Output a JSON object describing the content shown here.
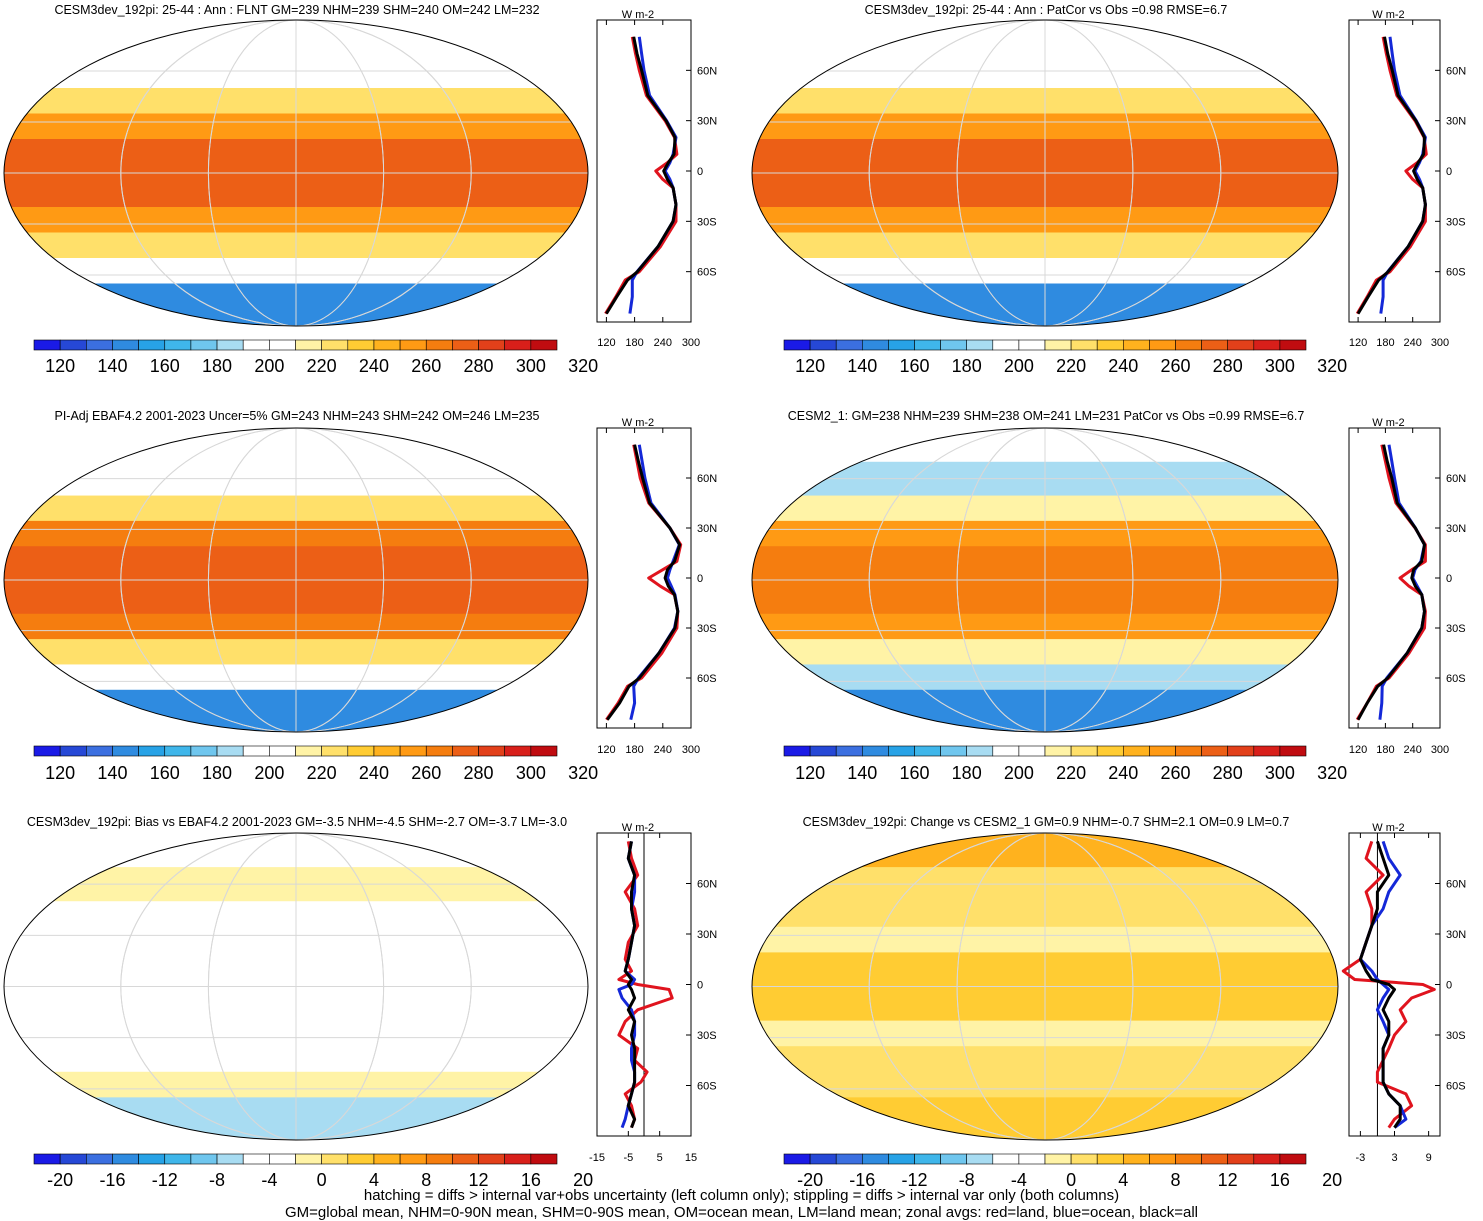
{
  "footer": {
    "line1": "hatching = diffs > internal var+obs uncertainty (left column only); stippling = diffs > internal var only (both columns)",
    "line2": "GM=global mean, NHM=0-90N mean, SHM=0-90S mean, OM=ocean mean, LM=land mean; zonal avgs: red=land, blue=ocean, black=all"
  },
  "colors": {
    "land_line": "#e0141e",
    "ocean_line": "#1428d8",
    "all_line": "#000000",
    "missing_land": "#c8c8c8"
  },
  "colormap": [
    "#1a1ae6",
    "#2648d6",
    "#3b6fe0",
    "#2f8be0",
    "#27a2e6",
    "#3fb6ea",
    "#6fc6ee",
    "#a8dcf2",
    "#ffffff",
    "#ffffff",
    "#fff3a6",
    "#ffe06a",
    "#ffcc33",
    "#ffb21e",
    "#ff9a14",
    "#f57d0f",
    "#ec5f16",
    "#e2401a",
    "#d81f1a",
    "#c00c10"
  ],
  "chart_data": [
    {
      "type": "heatmap",
      "title": "CESM3dev_192pi: 25-44 : Ann : FLNT GM=239 NHM=239 SHM=240 OM=242 LM=232",
      "colorbar_ticks": [
        "120",
        "140",
        "160",
        "180",
        "200",
        "220",
        "240",
        "260",
        "280",
        "300",
        "320"
      ],
      "zonal_axis": {
        "xlim": [
          100,
          300
        ],
        "xticks": [
          "120",
          "180",
          "240",
          "300"
        ],
        "unit": "W m-2",
        "lat_ticks": [
          "60N",
          "30N",
          "0",
          "30S",
          "60S"
        ]
      },
      "zonal_series": [
        {
          "name": "land",
          "lat": [
            80,
            70,
            60,
            45,
            30,
            20,
            10,
            5,
            0,
            -5,
            -10,
            -20,
            -30,
            -45,
            -60,
            -65,
            -75,
            -85
          ],
          "values": [
            175,
            182,
            190,
            205,
            245,
            265,
            270,
            250,
            225,
            240,
            262,
            268,
            268,
            235,
            190,
            160,
            140,
            118
          ]
        },
        {
          "name": "ocean",
          "lat": [
            80,
            70,
            60,
            45,
            30,
            20,
            10,
            5,
            0,
            -5,
            -10,
            -20,
            -30,
            -45,
            -60,
            -65,
            -75,
            -85
          ],
          "values": [
            190,
            195,
            200,
            212,
            248,
            268,
            262,
            255,
            245,
            255,
            262,
            268,
            262,
            230,
            185,
            175,
            175,
            170
          ]
        },
        {
          "name": "all",
          "lat": [
            80,
            70,
            60,
            45,
            30,
            20,
            10,
            5,
            0,
            -5,
            -10,
            -20,
            -30,
            -45,
            -60,
            -65,
            -75,
            -85
          ],
          "values": [
            178,
            185,
            195,
            208,
            247,
            266,
            264,
            252,
            242,
            250,
            262,
            268,
            262,
            230,
            186,
            165,
            142,
            120
          ]
        }
      ],
      "field": {
        "tropics": 270,
        "subtropics": 255,
        "midlat": 220,
        "highlat": 190,
        "polar_n": 195,
        "polar_s": 140
      }
    },
    {
      "type": "heatmap",
      "title": "CESM3dev_192pi: 25-44 : Ann : PatCor vs Obs =0.98 RMSE=6.7",
      "colorbar_ticks": [
        "120",
        "140",
        "160",
        "180",
        "200",
        "220",
        "240",
        "260",
        "280",
        "300",
        "320"
      ],
      "zonal_axis": {
        "xlim": [
          100,
          300
        ],
        "xticks": [
          "120",
          "180",
          "240",
          "300"
        ],
        "unit": "W m-2",
        "lat_ticks": [
          "60N",
          "30N",
          "0",
          "30S",
          "60S"
        ]
      },
      "zonal_series": [
        {
          "name": "land",
          "lat": [
            80,
            70,
            60,
            45,
            30,
            20,
            10,
            5,
            0,
            -5,
            -10,
            -20,
            -30,
            -45,
            -60,
            -65,
            -75,
            -85
          ],
          "values": [
            175,
            182,
            190,
            205,
            245,
            265,
            270,
            250,
            225,
            240,
            262,
            268,
            268,
            235,
            190,
            160,
            140,
            118
          ]
        },
        {
          "name": "ocean",
          "lat": [
            80,
            70,
            60,
            45,
            30,
            20,
            10,
            5,
            0,
            -5,
            -10,
            -20,
            -30,
            -45,
            -60,
            -65,
            -75,
            -85
          ],
          "values": [
            190,
            195,
            200,
            212,
            248,
            268,
            262,
            255,
            245,
            255,
            262,
            268,
            262,
            230,
            185,
            175,
            175,
            170
          ]
        },
        {
          "name": "all",
          "lat": [
            80,
            70,
            60,
            45,
            30,
            20,
            10,
            5,
            0,
            -5,
            -10,
            -20,
            -30,
            -45,
            -60,
            -65,
            -75,
            -85
          ],
          "values": [
            178,
            185,
            195,
            208,
            247,
            266,
            264,
            252,
            242,
            250,
            262,
            268,
            262,
            230,
            186,
            165,
            142,
            120
          ]
        }
      ],
      "field": {
        "tropics": 270,
        "subtropics": 255,
        "midlat": 220,
        "highlat": 190,
        "polar_n": 195,
        "polar_s": 140
      }
    },
    {
      "type": "heatmap",
      "title": "PI-Adj EBAF4.2 2001-2023 Uncer=5% GM=243 NHM=243 SHM=242 OM=246 LM=235",
      "colorbar_ticks": [
        "120",
        "140",
        "160",
        "180",
        "200",
        "220",
        "240",
        "260",
        "280",
        "300",
        "320"
      ],
      "zonal_axis": {
        "xlim": [
          100,
          300
        ],
        "xticks": [
          "120",
          "180",
          "240",
          "300"
        ],
        "unit": "W m-2",
        "lat_ticks": [
          "60N",
          "30N",
          "0",
          "30S",
          "60S"
        ]
      },
      "zonal_series": [
        {
          "name": "land",
          "lat": [
            80,
            70,
            60,
            45,
            30,
            20,
            10,
            5,
            0,
            -5,
            -10,
            -20,
            -30,
            -45,
            -60,
            -65,
            -75,
            -85
          ],
          "values": [
            178,
            185,
            192,
            210,
            255,
            278,
            270,
            240,
            210,
            235,
            265,
            272,
            270,
            238,
            195,
            165,
            145,
            120
          ]
        },
        {
          "name": "ocean",
          "lat": [
            80,
            70,
            60,
            45,
            30,
            20,
            10,
            5,
            0,
            -5,
            -10,
            -20,
            -30,
            -45,
            -60,
            -65,
            -75,
            -85
          ],
          "values": [
            190,
            196,
            202,
            215,
            255,
            275,
            262,
            255,
            250,
            258,
            266,
            272,
            265,
            232,
            188,
            178,
            180,
            172
          ]
        },
        {
          "name": "all",
          "lat": [
            80,
            70,
            60,
            45,
            30,
            20,
            10,
            5,
            0,
            -5,
            -10,
            -20,
            -30,
            -45,
            -60,
            -65,
            -75,
            -85
          ],
          "values": [
            180,
            188,
            197,
            212,
            255,
            276,
            265,
            250,
            245,
            252,
            265,
            272,
            266,
            232,
            190,
            168,
            148,
            122
          ]
        }
      ],
      "field": {
        "tropics": 275,
        "subtropics": 262,
        "midlat": 222,
        "highlat": 192,
        "polar_n": 198,
        "polar_s": 145
      }
    },
    {
      "type": "heatmap",
      "title": "CESM2_1: GM=238 NHM=239 SHM=238 OM=241 LM=231 PatCor vs Obs =0.99 RMSE=6.7",
      "colorbar_ticks": [
        "120",
        "140",
        "160",
        "180",
        "200",
        "220",
        "240",
        "260",
        "280",
        "300",
        "320"
      ],
      "zonal_axis": {
        "xlim": [
          100,
          300
        ],
        "xticks": [
          "120",
          "180",
          "240",
          "300"
        ],
        "unit": "W m-2",
        "lat_ticks": [
          "60N",
          "30N",
          "0",
          "30S",
          "60S"
        ]
      },
      "zonal_series": [
        {
          "name": "land",
          "lat": [
            80,
            70,
            60,
            45,
            30,
            20,
            10,
            5,
            0,
            -5,
            -10,
            -20,
            -30,
            -45,
            -60,
            -65,
            -75,
            -85
          ],
          "values": [
            172,
            180,
            188,
            203,
            245,
            268,
            268,
            238,
            212,
            232,
            260,
            268,
            266,
            232,
            188,
            160,
            140,
            118
          ]
        },
        {
          "name": "ocean",
          "lat": [
            80,
            70,
            60,
            45,
            30,
            20,
            10,
            5,
            0,
            -5,
            -10,
            -20,
            -30,
            -45,
            -60,
            -65,
            -75,
            -85
          ],
          "values": [
            188,
            194,
            200,
            210,
            246,
            266,
            258,
            245,
            240,
            250,
            260,
            266,
            260,
            228,
            183,
            173,
            172,
            168
          ]
        },
        {
          "name": "all",
          "lat": [
            80,
            70,
            60,
            45,
            30,
            20,
            10,
            5,
            0,
            -5,
            -10,
            -20,
            -30,
            -45,
            -60,
            -65,
            -75,
            -85
          ],
          "values": [
            176,
            184,
            194,
            206,
            246,
            266,
            260,
            242,
            238,
            246,
            260,
            266,
            260,
            228,
            185,
            163,
            140,
            120
          ]
        }
      ],
      "field": {
        "tropics": 268,
        "subtropics": 255,
        "midlat": 218,
        "highlat": 188,
        "polar_n": 193,
        "polar_s": 140
      }
    },
    {
      "type": "heatmap",
      "title": "CESM3dev_192pi: Bias vs EBAF4.2 2001-2023 GM=-3.5 NHM=-4.5 SHM=-2.7 OM=-3.7 LM=-3.0",
      "colorbar_ticks": [
        "-20",
        "-16",
        "-12",
        "-8",
        "-4",
        "0",
        "4",
        "8",
        "12",
        "16",
        "20"
      ],
      "zonal_axis": {
        "xlim": [
          -15,
          15
        ],
        "xticks": [
          "-15",
          "-5",
          "5",
          "15"
        ],
        "unit": "W m-2",
        "lat_ticks": [
          "60N",
          "30N",
          "0",
          "30S",
          "60S"
        ]
      },
      "zonal_series": [
        {
          "name": "land",
          "lat": [
            85,
            75,
            65,
            55,
            45,
            35,
            25,
            15,
            8,
            3,
            0,
            -3,
            -8,
            -15,
            -22,
            -30,
            -38,
            -45,
            -52,
            -58,
            -65,
            -72,
            -80,
            -85
          ],
          "values": [
            -5,
            -4,
            -2,
            -6,
            -3,
            -2,
            -5,
            -6,
            -4,
            -8,
            -2,
            8,
            9,
            -2,
            -6,
            -8,
            -2,
            -3,
            1,
            -1,
            -6,
            -4,
            -3,
            -4
          ]
        },
        {
          "name": "ocean",
          "lat": [
            85,
            75,
            65,
            55,
            45,
            35,
            25,
            15,
            8,
            3,
            0,
            -3,
            -8,
            -15,
            -22,
            -30,
            -38,
            -45,
            -52,
            -58,
            -65,
            -72,
            -80,
            -85
          ],
          "values": [
            -4,
            -5,
            -3,
            -3,
            -4,
            -3,
            -4,
            -5,
            -6,
            -3,
            -4,
            -8,
            -7,
            -4,
            -3,
            -3,
            -4,
            -4,
            -3,
            -3,
            -4,
            -5,
            -6,
            -7
          ]
        },
        {
          "name": "all",
          "lat": [
            85,
            75,
            65,
            55,
            45,
            35,
            25,
            15,
            8,
            3,
            0,
            -3,
            -8,
            -15,
            -22,
            -30,
            -38,
            -45,
            -52,
            -58,
            -65,
            -72,
            -80,
            -85
          ],
          "values": [
            -4,
            -5,
            -3,
            -4,
            -4,
            -3,
            -4,
            -5,
            -6,
            -4,
            -5,
            -4,
            -3,
            -5,
            -3,
            -4,
            -3,
            -3,
            -3,
            -3,
            -4,
            -5,
            -3,
            -4
          ]
        }
      ],
      "field": {
        "tropics": -5,
        "subtropics": -6,
        "midlat": -4,
        "highlat": -2,
        "polar_n": -3,
        "polar_s": -8
      }
    },
    {
      "type": "heatmap",
      "title": "CESM3dev_192pi: Change vs CESM2_1 GM=0.9 NHM=-0.7 SHM=2.1 OM=0.9 LM=0.7",
      "colorbar_ticks": [
        "-20",
        "-16",
        "-12",
        "-8",
        "-4",
        "0",
        "4",
        "8",
        "12",
        "16",
        "20"
      ],
      "zonal_axis": {
        "xlim": [
          -5,
          11
        ],
        "xticks": [
          "-3",
          "3",
          "9"
        ],
        "unit": "W m-2",
        "lat_ticks": [
          "60N",
          "30N",
          "0",
          "30S",
          "60S"
        ]
      },
      "zonal_series": [
        {
          "name": "land",
          "lat": [
            85,
            75,
            65,
            55,
            45,
            35,
            25,
            15,
            8,
            3,
            0,
            -3,
            -8,
            -15,
            -22,
            -30,
            -38,
            -45,
            -52,
            -58,
            -65,
            -72,
            -80,
            -85
          ],
          "values": [
            -1,
            -2,
            1,
            -2,
            -1,
            -1,
            -2,
            -3,
            -6,
            -4,
            8,
            10,
            6,
            4,
            5,
            3,
            2,
            1,
            0,
            0,
            5,
            6,
            3,
            2
          ]
        },
        {
          "name": "ocean",
          "lat": [
            85,
            75,
            65,
            55,
            45,
            35,
            25,
            15,
            8,
            3,
            0,
            -3,
            -8,
            -15,
            -22,
            -30,
            -38,
            -45,
            -52,
            -58,
            -65,
            -72,
            -80,
            -85
          ],
          "values": [
            1,
            2,
            4,
            2,
            1,
            -1,
            -2,
            -3,
            -1,
            0,
            1,
            2,
            1,
            0,
            1,
            2,
            1,
            1,
            1,
            1,
            2,
            4,
            5,
            3
          ]
        },
        {
          "name": "all",
          "lat": [
            85,
            75,
            65,
            55,
            45,
            35,
            25,
            15,
            8,
            3,
            0,
            -3,
            -8,
            -15,
            -22,
            -30,
            -38,
            -45,
            -52,
            -58,
            -65,
            -72,
            -80,
            -85
          ],
          "values": [
            0,
            1,
            2,
            0,
            0,
            -1,
            -2,
            -3,
            -2,
            -1,
            2,
            3,
            2,
            1,
            2,
            2,
            1,
            1,
            1,
            1,
            2,
            4,
            4,
            3
          ]
        }
      ],
      "field": {
        "tropics": 3,
        "subtropics": -2,
        "midlat": 1,
        "highlat": 0,
        "polar_n": 4,
        "polar_s": 3
      }
    }
  ]
}
